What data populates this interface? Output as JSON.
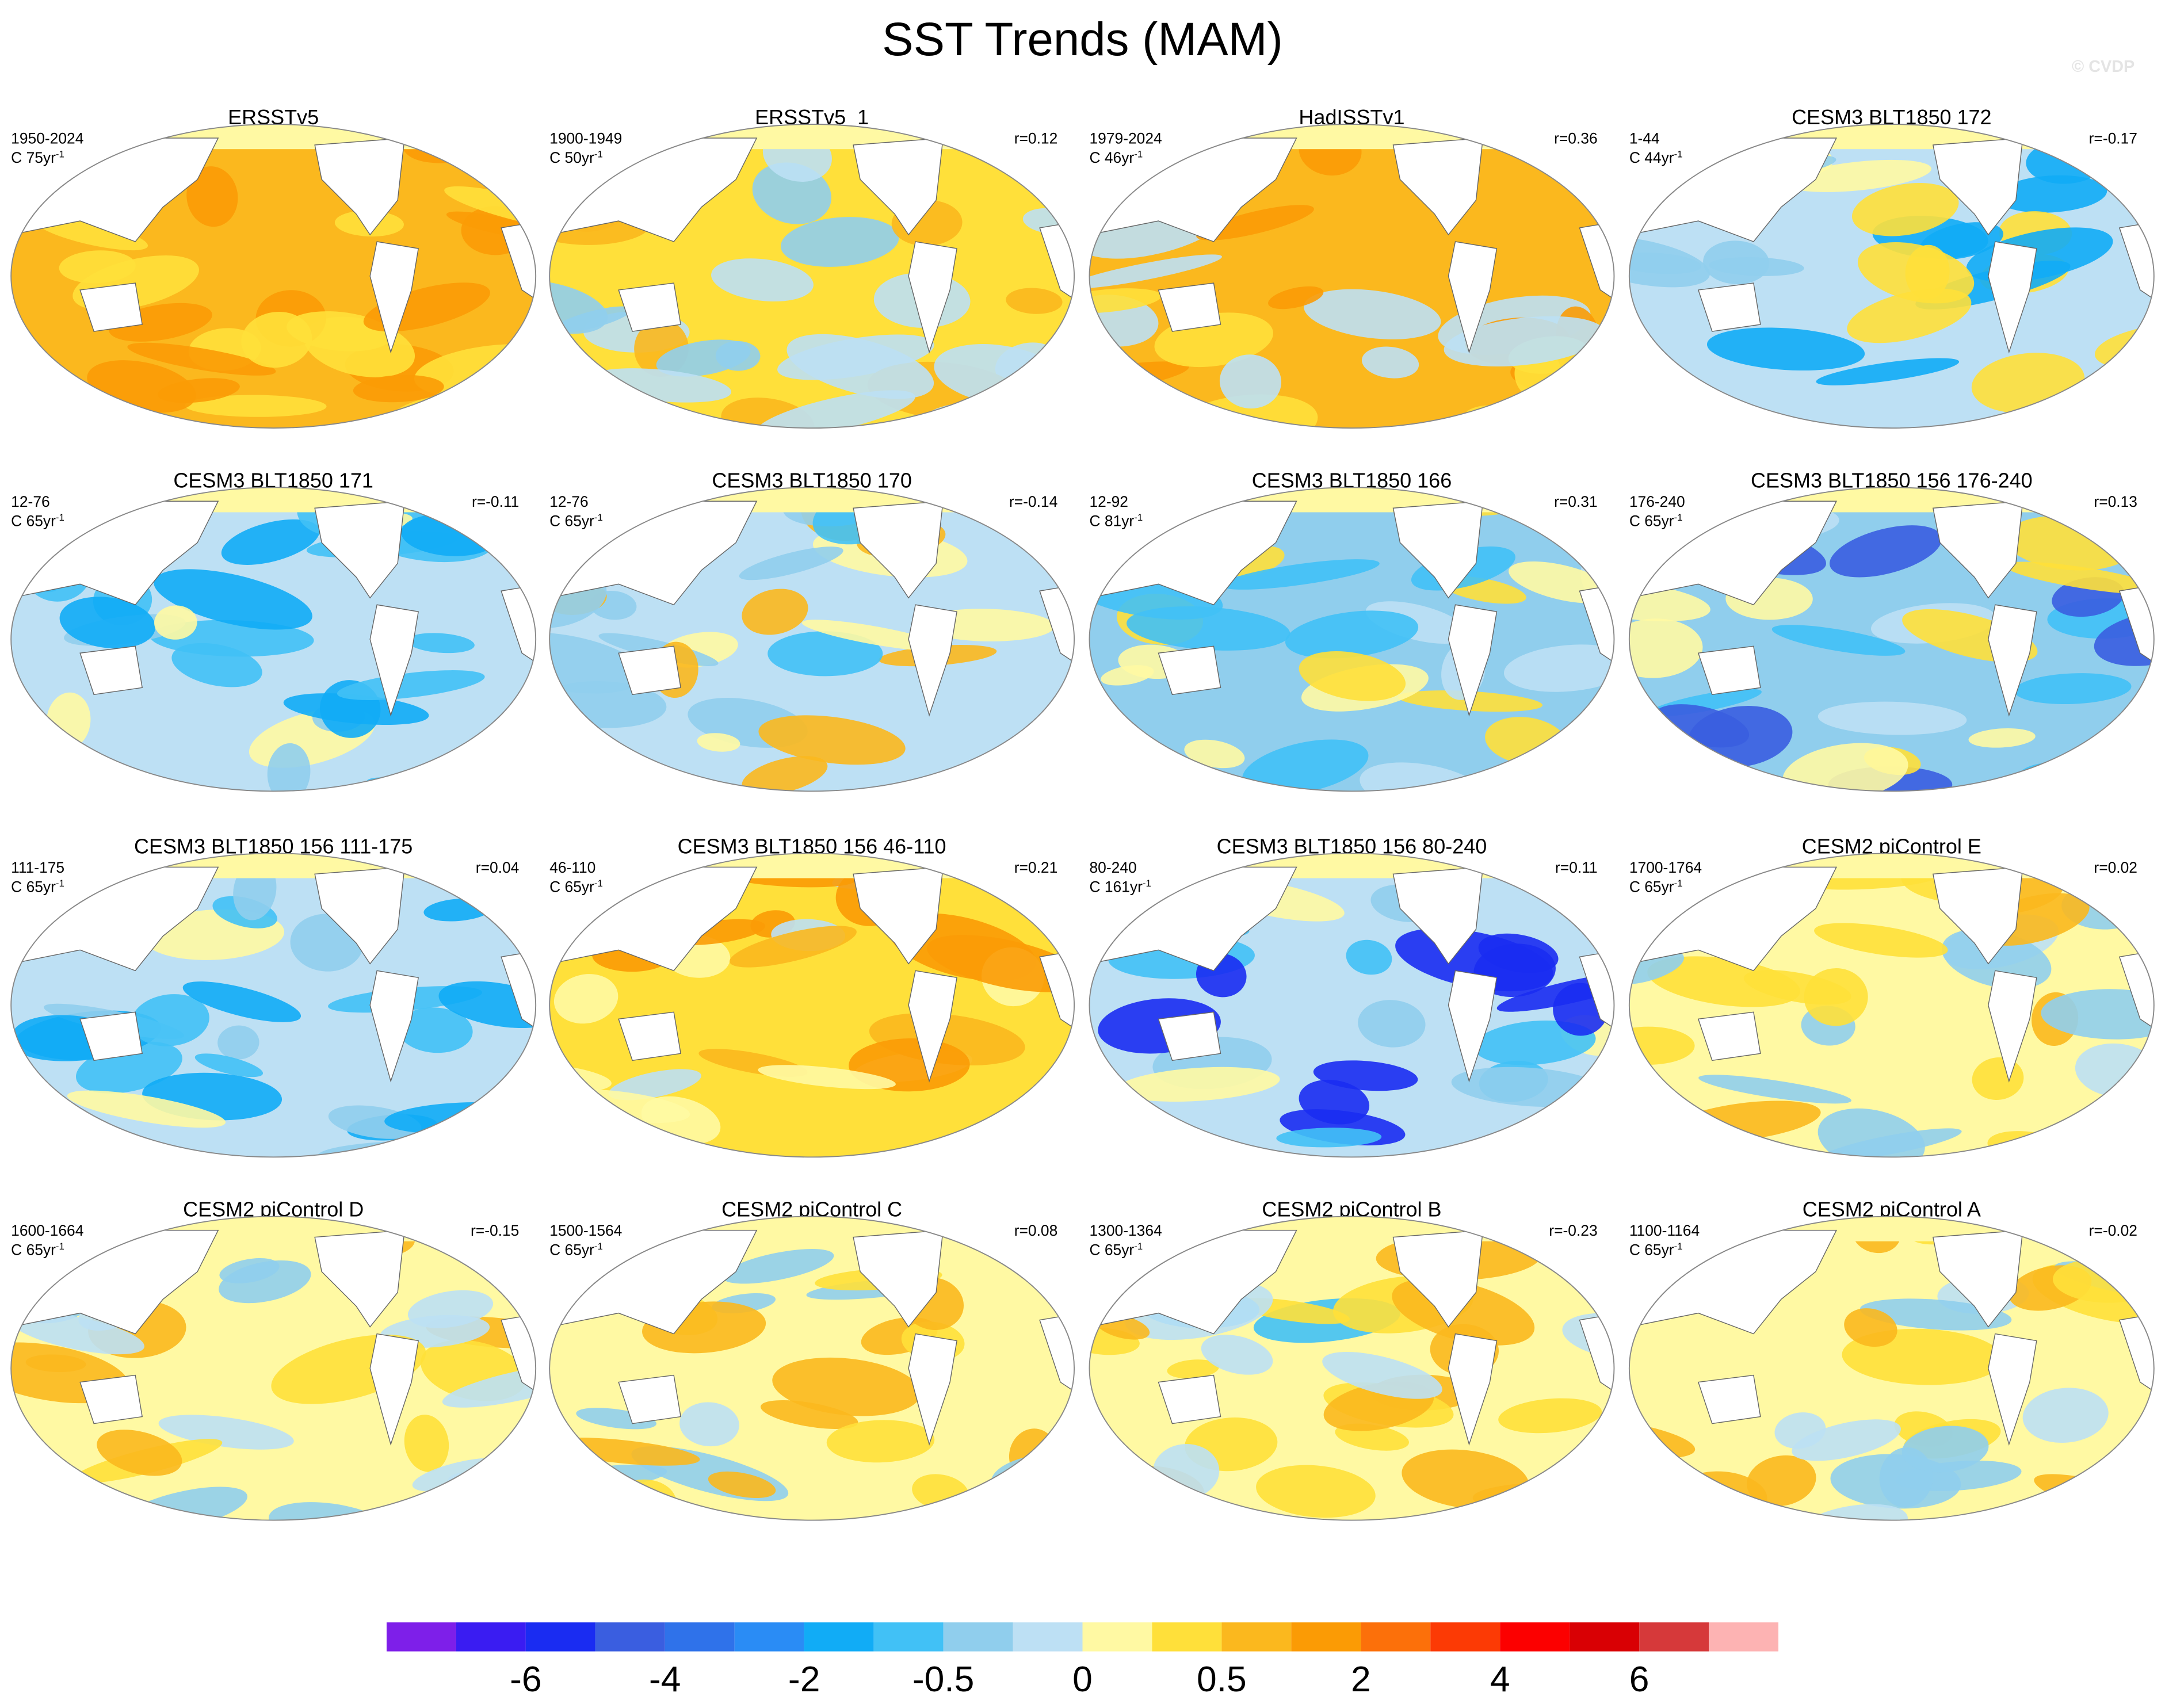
{
  "title": "SST Trends (MAM)",
  "watermark": "© CVDP",
  "panels": [
    {
      "title": "ERSSTv5",
      "period": "1950-2024",
      "length": "C 75yr",
      "exponent": "-1"
    },
    {
      "title": "ERSSTv5_1",
      "period": "1900-1949",
      "length": "C 50yr",
      "exponent": "-1",
      "r": "r=0.12"
    },
    {
      "title": "HadISSTv1",
      "period": "1979-2024",
      "length": "C 46yr",
      "exponent": "-1",
      "r": "r=0.36"
    },
    {
      "title": "CESM3 BLT1850 172",
      "period": "1-44",
      "length": "C 44yr",
      "exponent": "-1",
      "r": "r=-0.17"
    },
    {
      "title": "CESM3 BLT1850 171",
      "period": "12-76",
      "length": "C 65yr",
      "exponent": "-1",
      "r": "r=-0.11"
    },
    {
      "title": "CESM3 BLT1850 170",
      "period": "12-76",
      "length": "C 65yr",
      "exponent": "-1",
      "r": "r=-0.14"
    },
    {
      "title": "CESM3 BLT1850 166",
      "period": "12-92",
      "length": "C 81yr",
      "exponent": "-1",
      "r": "r=0.31"
    },
    {
      "title": "CESM3 BLT1850 156 176-240",
      "period": "176-240",
      "length": "C 65yr",
      "exponent": "-1",
      "r": "r=0.13"
    },
    {
      "title": "CESM3 BLT1850 156 111-175",
      "period": "111-175",
      "length": "C 65yr",
      "exponent": "-1",
      "r": "r=0.04"
    },
    {
      "title": "CESM3 BLT1850 156 46-110",
      "period": "46-110",
      "length": "C 65yr",
      "exponent": "-1",
      "r": "r=0.21"
    },
    {
      "title": "CESM3 BLT1850 156 80-240",
      "period": "80-240",
      "length": "C 161yr",
      "exponent": "-1",
      "r": "r=0.11"
    },
    {
      "title": "CESM2 piControl E",
      "period": "1700-1764",
      "length": "C 65yr",
      "exponent": "-1",
      "r": "r=0.02"
    },
    {
      "title": "CESM2 piControl D",
      "period": "1600-1664",
      "length": "C 65yr",
      "exponent": "-1",
      "r": "r=-0.15"
    },
    {
      "title": "CESM2 piControl C",
      "period": "1500-1564",
      "length": "C 65yr",
      "exponent": "-1",
      "r": "r=0.08"
    },
    {
      "title": "CESM2 piControl B",
      "period": "1300-1364",
      "length": "C 65yr",
      "exponent": "-1",
      "r": "r=-0.23"
    },
    {
      "title": "CESM2 piControl A",
      "period": "1100-1164",
      "length": "C 65yr",
      "exponent": "-1",
      "r": "r=-0.02"
    }
  ],
  "colorbar": {
    "colors": [
      "#7e1fe9",
      "#3a1cf2",
      "#1a2cf2",
      "#3a5ee0",
      "#2f72ea",
      "#2a8cf5",
      "#11acf6",
      "#41c1f6",
      "#90ceed",
      "#bde0f4",
      "#fff9a3",
      "#ffe03a",
      "#fbb81e",
      "#fb9b05",
      "#fc700a",
      "#fc3a05",
      "#fc0000",
      "#d90004",
      "#d6393a",
      "#fdb3b3"
    ],
    "labels": [
      "-6",
      "-4",
      "-2",
      "-0.5",
      "0",
      "0.5",
      "2",
      "4",
      "6"
    ]
  }
}
